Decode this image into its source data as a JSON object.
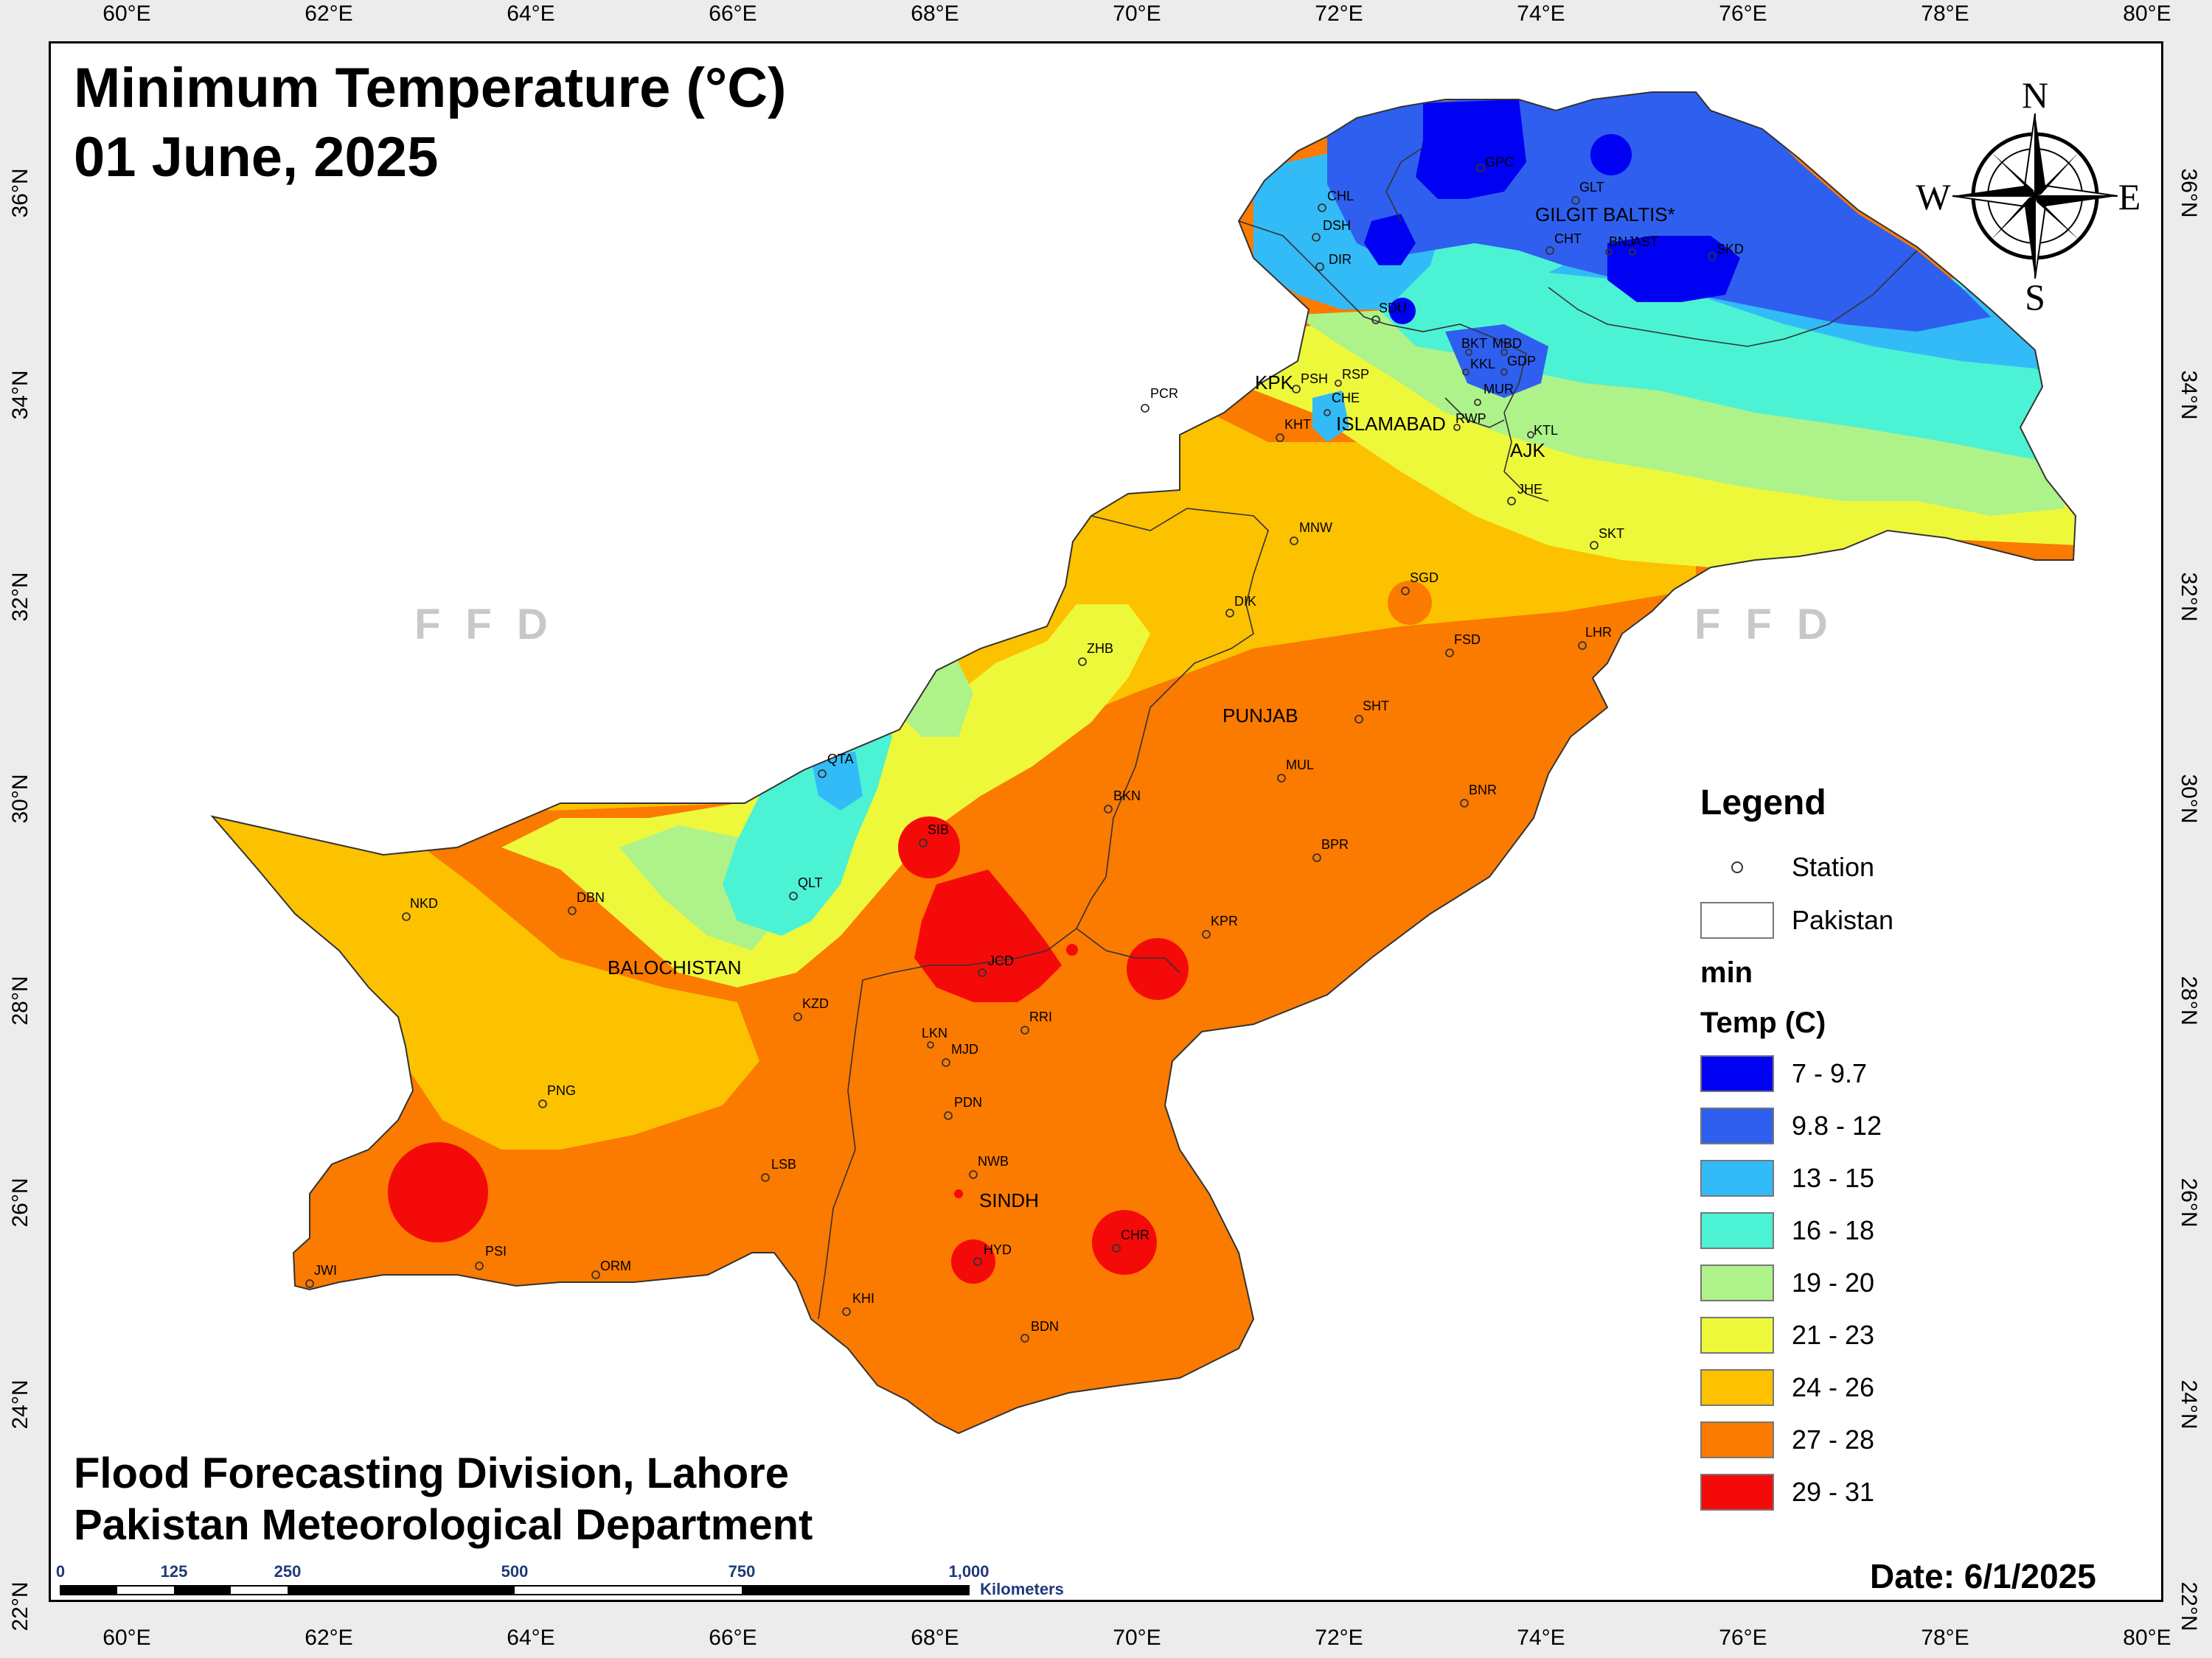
{
  "title": {
    "line1": "Minimum Temperature (°C)",
    "line2": "01 June, 2025"
  },
  "credit": {
    "line1": "Flood Forecasting Division, Lahore",
    "line2": "Pakistan Meteorological Department"
  },
  "date": "Date: 6/1/2025",
  "watermark": "FFD",
  "axes": {
    "lon_ticks": [
      "60°E",
      "62°E",
      "64°E",
      "66°E",
      "68°E",
      "70°E",
      "72°E",
      "74°E",
      "76°E",
      "78°E",
      "80°E"
    ],
    "lat_ticks": [
      "36°N",
      "34°N",
      "32°N",
      "30°N",
      "28°N",
      "26°N",
      "24°N",
      "22°N"
    ]
  },
  "compass": {
    "n": "N",
    "s": "S",
    "e": "E",
    "w": "W"
  },
  "legend": {
    "title": "Legend",
    "station": "Station",
    "pakistan": "Pakistan",
    "sub1": "min",
    "sub2": "Temp (C)",
    "classes": [
      {
        "label": "7 - 9.7",
        "color": "#0000f2"
      },
      {
        "label": "9.8 - 12",
        "color": "#2f5fee"
      },
      {
        "label": "13 - 15",
        "color": "#33bbf8"
      },
      {
        "label": "16 - 18",
        "color": "#4cf2d4"
      },
      {
        "label": "19 - 20",
        "color": "#aef28a"
      },
      {
        "label": "21 - 23",
        "color": "#eef83a"
      },
      {
        "label": "24 - 26",
        "color": "#fcc200"
      },
      {
        "label": "27 - 28",
        "color": "#fb7a00"
      },
      {
        "label": "29 - 31",
        "color": "#f50a0a"
      }
    ]
  },
  "scale": {
    "labels": [
      "0",
      "125",
      "250",
      "500",
      "750",
      "1,000"
    ],
    "unit": "Kilometers"
  },
  "regions": [
    "GILGIT BALTIS*",
    "KPK",
    "ISLAMABAD",
    "AJK",
    "PUNJAB",
    "BALOCHISTAN",
    "SINDH"
  ],
  "stations": [
    "CHL",
    "DSH",
    "DIR",
    "GPC",
    "GLT",
    "CHT",
    "BNJ",
    "AST",
    "SKD",
    "SDU",
    "BKT",
    "MBD",
    "KKL",
    "GDP",
    "PCR",
    "PSH",
    "RSP",
    "CHE",
    "MUR",
    "KHT",
    "RWP",
    "KTL",
    "JHE",
    "SKT",
    "MNW",
    "SGD",
    "DIK",
    "FSD",
    "LHR",
    "ZHB",
    "SHT",
    "QTA",
    "MUL",
    "BNR",
    "BKN",
    "SIB",
    "BPR",
    "QLT",
    "NKD",
    "DBN",
    "KPR",
    "JCD",
    "KZD",
    "RRI",
    "LKN",
    "MJD",
    "PNG",
    "PDN",
    "LSB",
    "NWB",
    "HYD",
    "CHR",
    "PSI",
    "ORM",
    "JWI",
    "KHI",
    "BDN"
  ]
}
